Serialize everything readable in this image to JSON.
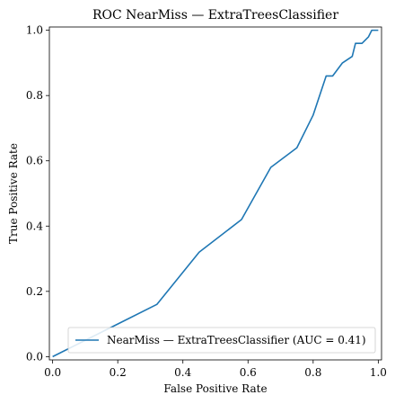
{
  "chart_data": {
    "type": "line",
    "title": "ROC NearMiss — ExtraTreesClassifier",
    "xlabel": "False Positive Rate",
    "ylabel": "True Positive Rate",
    "xlim": [
      -0.01,
      1.01
    ],
    "ylim": [
      -0.01,
      1.01
    ],
    "x_ticks": [
      "0.0",
      "0.2",
      "0.4",
      "0.6",
      "0.8",
      "1.0"
    ],
    "y_ticks": [
      "0.0",
      "0.2",
      "0.4",
      "0.6",
      "0.8",
      "1.0"
    ],
    "grid": false,
    "legend_position": "lower-right",
    "series": [
      {
        "name": "NearMiss — ExtraTreesClassifier (AUC = 0.41)",
        "color": "#1f77b4",
        "x": [
          0.0,
          0.32,
          0.45,
          0.58,
          0.67,
          0.75,
          0.8,
          0.84,
          0.86,
          0.89,
          0.92,
          0.93,
          0.95,
          0.97,
          0.98,
          0.99,
          1.0
        ],
        "y": [
          0.0,
          0.16,
          0.32,
          0.42,
          0.58,
          0.64,
          0.74,
          0.86,
          0.86,
          0.9,
          0.92,
          0.96,
          0.96,
          0.98,
          1.0,
          1.0,
          1.0
        ]
      }
    ]
  }
}
